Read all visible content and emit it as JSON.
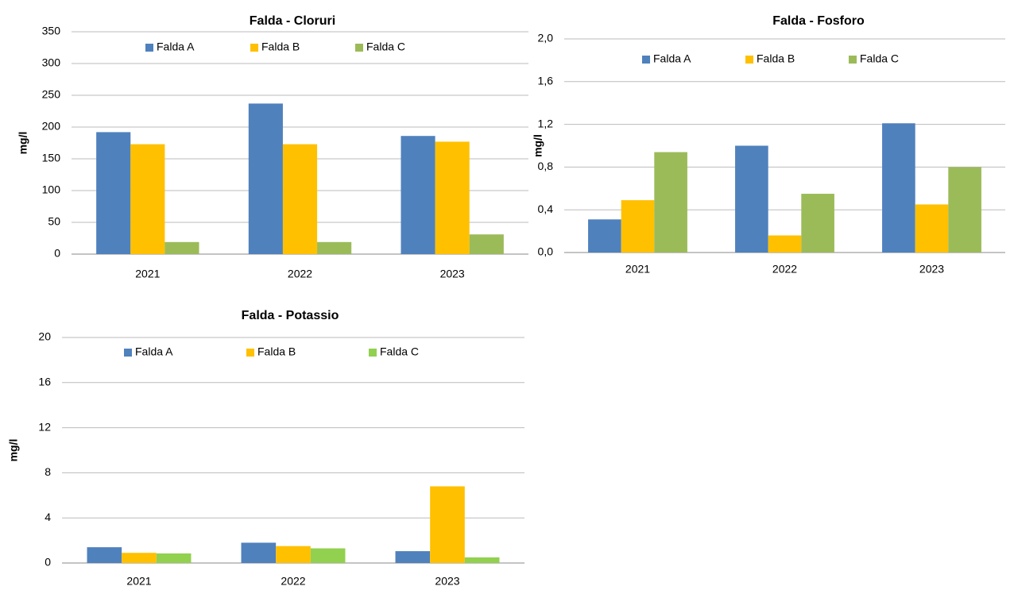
{
  "chart_data": [
    {
      "type": "bar",
      "title": "Falda - Cloruri",
      "y_label": "mg/l",
      "categories": [
        "2021",
        "2022",
        "2023"
      ],
      "series": [
        {
          "name": "Falda A",
          "color": "#4f81bd",
          "values": [
            192,
            237,
            186
          ]
        },
        {
          "name": "Falda B",
          "color": "#ffc000",
          "values": [
            173,
            173,
            177
          ]
        },
        {
          "name": "Falda C",
          "color": "#9bbb59",
          "values": [
            19,
            19,
            31
          ]
        }
      ],
      "ylim": [
        0,
        350
      ],
      "yticks": [
        0,
        50,
        100,
        150,
        200,
        250,
        300,
        350
      ],
      "grid": true,
      "legend": "top"
    },
    {
      "type": "bar",
      "title": "Falda - Fosforo",
      "y_label": "mg/l",
      "categories": [
        "2021",
        "2022",
        "2023"
      ],
      "series": [
        {
          "name": "Falda A",
          "color": "#4f81bd",
          "values": [
            0.31,
            1.0,
            1.21
          ]
        },
        {
          "name": "Falda B",
          "color": "#ffc000",
          "values": [
            0.49,
            0.16,
            0.45
          ]
        },
        {
          "name": "Falda C",
          "color": "#9bbb59",
          "values": [
            0.94,
            0.55,
            0.8
          ]
        }
      ],
      "ylim": [
        0,
        2
      ],
      "yticks": [
        {
          "value": 0,
          "label": "0,0"
        },
        {
          "value": 0.4,
          "label": "0,4"
        },
        {
          "value": 0.8,
          "label": "0,8"
        },
        {
          "value": 1.2,
          "label": "1,2"
        },
        {
          "value": 1.6,
          "label": "1,6"
        },
        {
          "value": 2,
          "label": "2,0"
        }
      ],
      "grid": true,
      "legend": "top"
    },
    {
      "type": "bar",
      "title": "Falda - Potassio",
      "y_label": "mg/l",
      "categories": [
        "2021",
        "2022",
        "2023"
      ],
      "series": [
        {
          "name": "Falda A",
          "color": "#4f81bd",
          "values": [
            1.4,
            1.8,
            1.05
          ]
        },
        {
          "name": "Falda B",
          "color": "#ffc000",
          "values": [
            0.9,
            1.5,
            6.8
          ]
        },
        {
          "name": "Falda C",
          "color": "#92d050",
          "values": [
            0.85,
            1.3,
            0.5
          ]
        }
      ],
      "ylim": [
        0,
        20
      ],
      "yticks": [
        0,
        4,
        8,
        12,
        16,
        20
      ],
      "grid": true,
      "legend": "top"
    }
  ]
}
